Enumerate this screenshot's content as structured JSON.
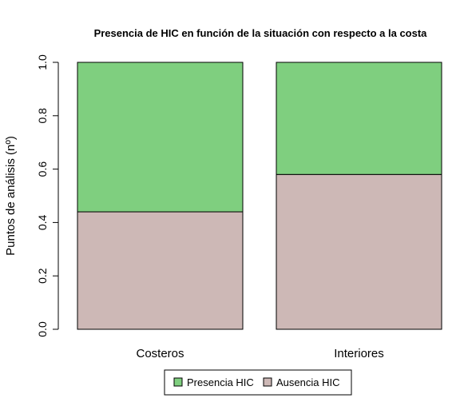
{
  "chart_data": {
    "type": "bar",
    "stacked": true,
    "title": "Presencia de HIC en función de la situación con respecto a la costa",
    "ylabel": "Puntos de análisis (nº)",
    "xlabel": "",
    "ylim": [
      0,
      1
    ],
    "yticks": [
      "0.0",
      "0.2",
      "0.4",
      "0.6",
      "0.8",
      "1.0"
    ],
    "categories": [
      "Costeros",
      "Interiores"
    ],
    "series": [
      {
        "name": "Ausencia HIC",
        "color": "#cdb8b6",
        "values": [
          0.44,
          0.58
        ]
      },
      {
        "name": "Presencia HIC",
        "color": "#7fcf7f",
        "values": [
          0.56,
          0.42
        ]
      }
    ],
    "legend": {
      "placement": "bottom-center",
      "items": [
        "Presencia HIC",
        "Ausencia HIC"
      ]
    },
    "grid": false
  }
}
